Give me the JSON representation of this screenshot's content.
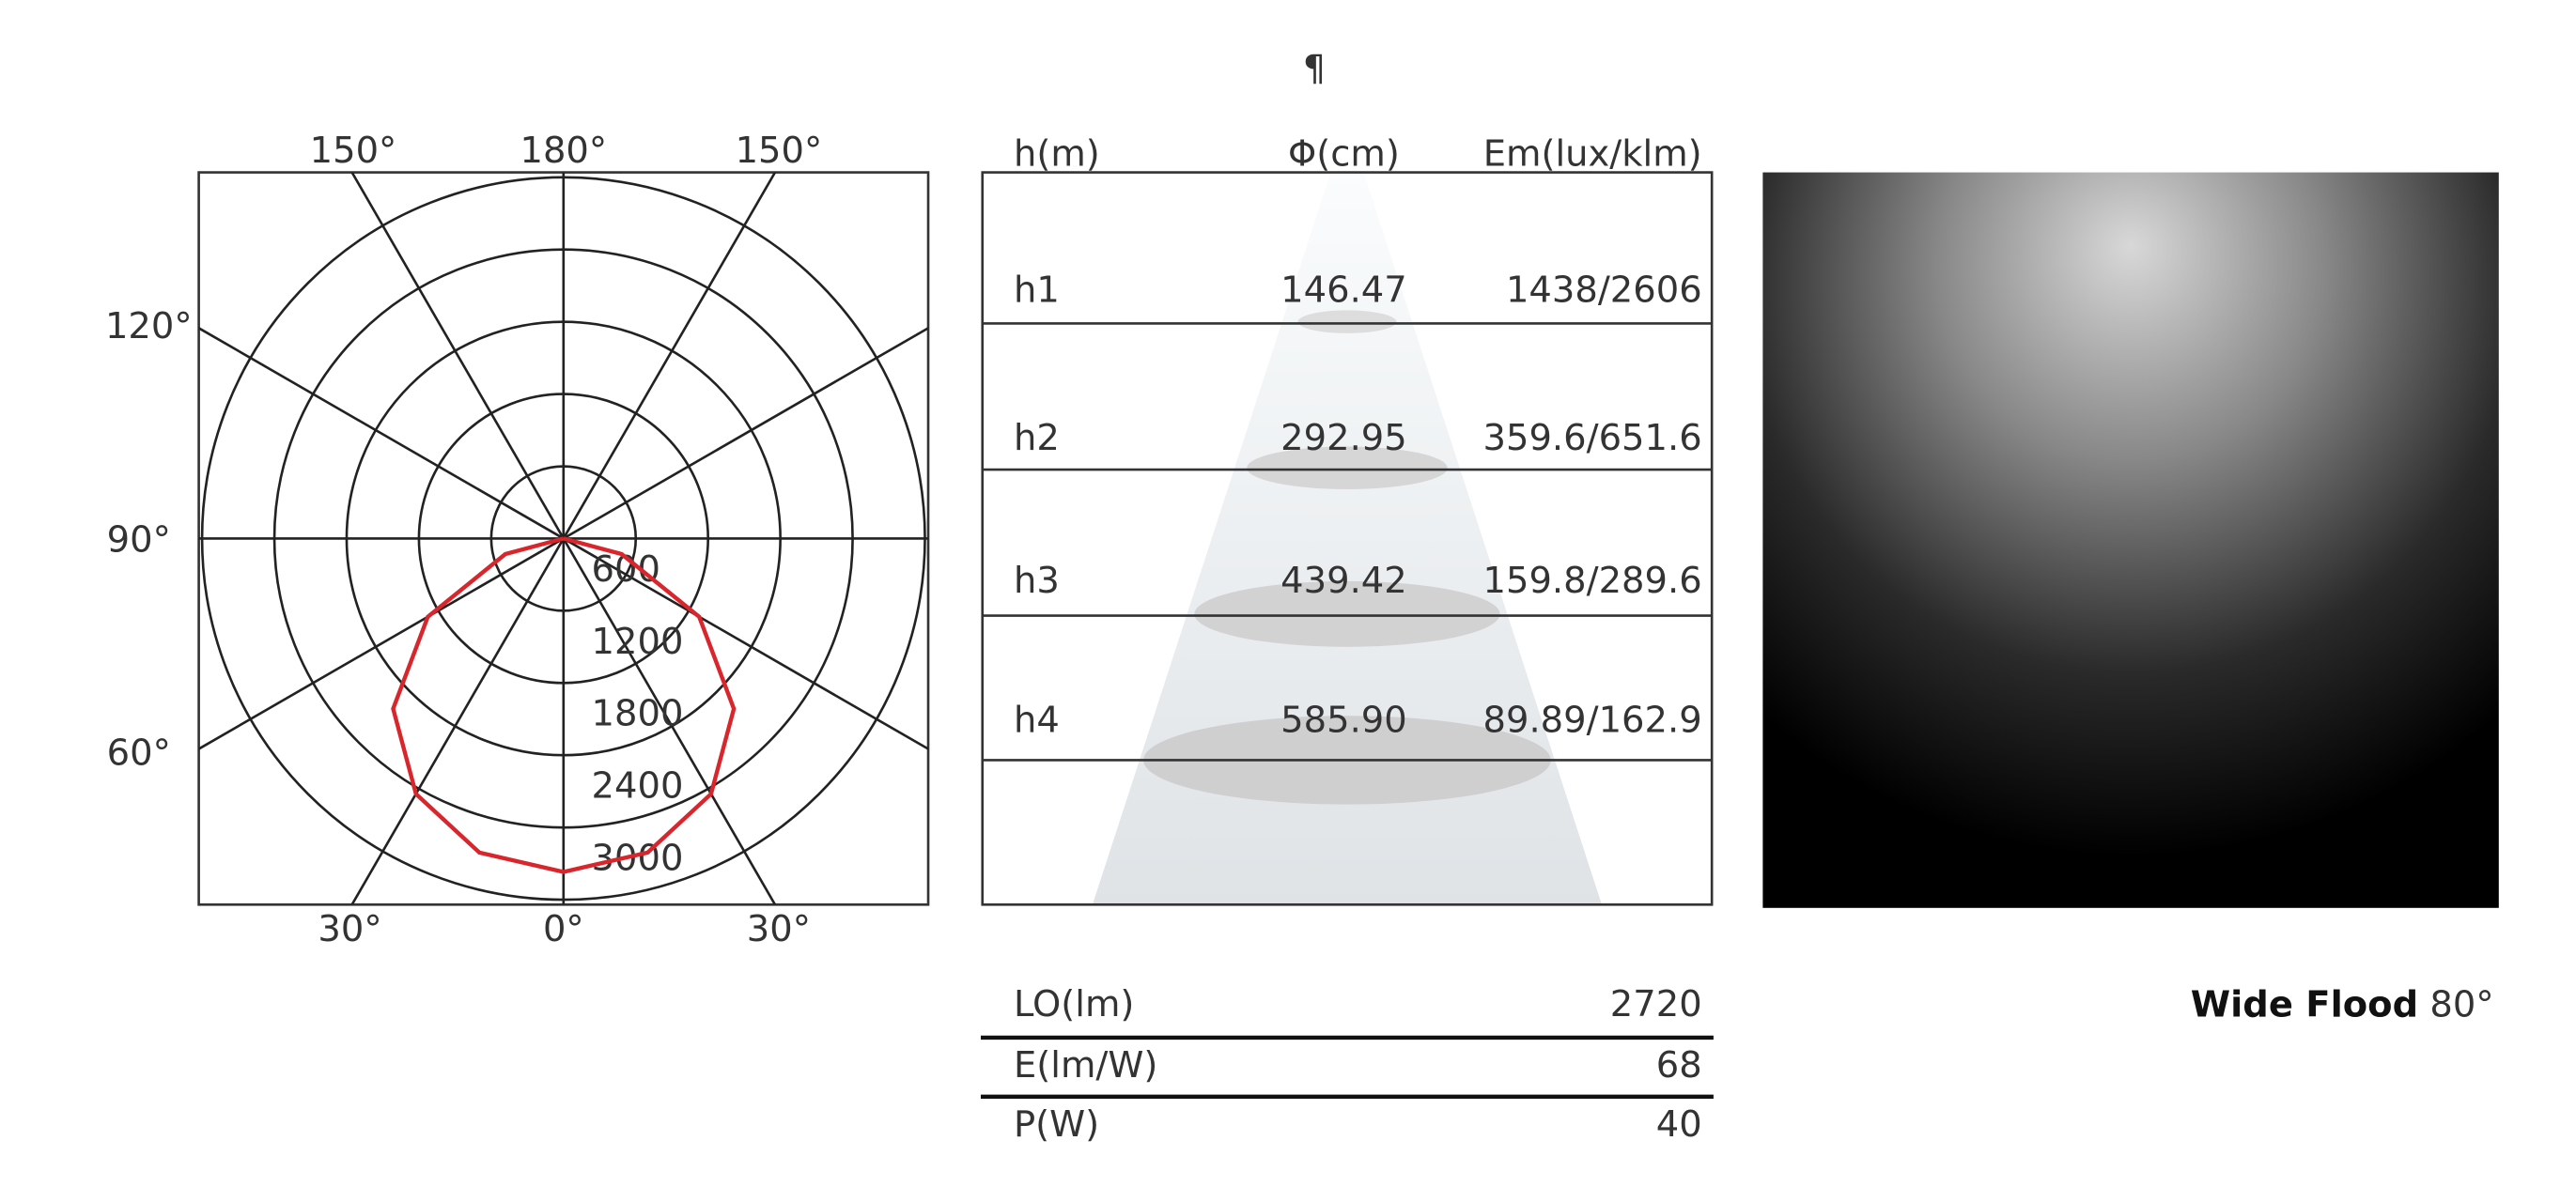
{
  "mark": "¶",
  "polar": {
    "angle_labels": [
      "150°",
      "180°",
      "150°",
      "120°",
      "90°",
      "60°",
      "30°",
      "0°",
      "30°"
    ],
    "rlim": [
      0,
      3000
    ],
    "rticks": [
      600,
      1200,
      1800,
      2400,
      3000
    ],
    "angles": [
      -90,
      -75,
      -60,
      -45,
      -30,
      -15,
      0,
      15,
      30,
      45,
      60,
      75,
      90
    ],
    "values": [
      0,
      500,
      1300,
      2000,
      2450,
      2700,
      2770,
      2700,
      2450,
      2000,
      1300,
      500,
      0
    ],
    "color": "#d9262c"
  },
  "table": {
    "header": [
      "h(m)",
      "Φ(cm)",
      "Em(lux/klm)"
    ],
    "rows": [
      [
        "h1",
        "146.47",
        "1438/2606"
      ],
      [
        "h2",
        "292.95",
        "359.6/651.6"
      ],
      [
        "h3",
        "439.42",
        "159.8/289.6"
      ],
      [
        "h4",
        "585.90",
        "89.89/162.9"
      ]
    ]
  },
  "summary": [
    [
      "LO(lm)",
      "2720"
    ],
    [
      "E(lm/W)",
      "68"
    ],
    [
      "P(W)",
      "40"
    ]
  ],
  "beam": {
    "name": "Wide Flood",
    "angle": "80°"
  }
}
